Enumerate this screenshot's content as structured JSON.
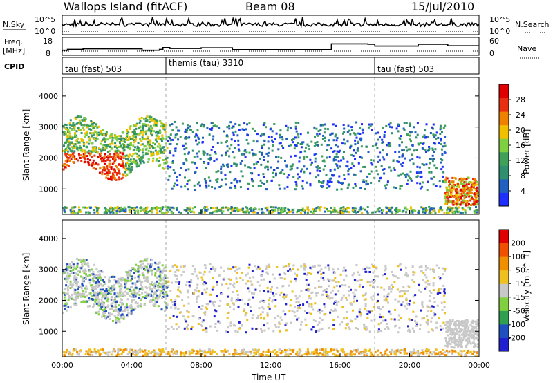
{
  "header": {
    "station": "Wallops Island (fitACF)",
    "beam": "Beam 08",
    "date": "15/Jul/2010"
  },
  "side_labels": {
    "nsky": "N.Sky",
    "freq_line1": "Freq.",
    "freq_line2": "[MHz]",
    "cpid": "CPID",
    "nsearch": "N.Search",
    "nave": "Nave"
  },
  "colors": {
    "power_scale": [
      "#1e2fff",
      "#2060c0",
      "#2f8f6f",
      "#3fa05a",
      "#7fd040",
      "#f0c000",
      "#f08000",
      "#e83010",
      "#e00000"
    ],
    "velocity_scale": [
      "#2020d0",
      "#2050c0",
      "#30a050",
      "#80d040",
      "#c8c8c8",
      "#f0c020",
      "#f09000",
      "#f05000",
      "#e00000"
    ]
  },
  "chart_data": [
    {
      "type": "line",
      "panel": "noise",
      "left_ticks": [
        "10^5",
        "10^0"
      ],
      "right_ticks": [
        "10^5",
        "10^0"
      ],
      "left_label": "N.Sky",
      "right_label": "N.Search"
    },
    {
      "type": "line",
      "panel": "frequency",
      "left_ticks": [
        "18",
        "8"
      ],
      "right_ticks": [
        "60",
        "0"
      ],
      "left_label": "Freq. [MHz]",
      "right_label": "Nave",
      "freq_steps": [
        {
          "t": 0.0,
          "mhz": 10.4
        },
        {
          "t": 0.3,
          "mhz": 11.0
        },
        {
          "t": 1.2,
          "mhz": 11.4
        },
        {
          "t": 4.6,
          "mhz": 10.4
        },
        {
          "t": 5.6,
          "mhz": 11.0
        },
        {
          "t": 5.8,
          "mhz": 12.2
        },
        {
          "t": 6.2,
          "mhz": 11.6
        },
        {
          "t": 8.0,
          "mhz": 12.0
        },
        {
          "t": 9.8,
          "mhz": 10.8
        },
        {
          "t": 15.5,
          "mhz": 14.6
        },
        {
          "t": 17.6,
          "mhz": 14.4
        },
        {
          "t": 18.0,
          "mhz": 13.2
        },
        {
          "t": 20.5,
          "mhz": 14.4
        },
        {
          "t": 22.2,
          "mhz": 13.4
        },
        {
          "t": 24.0,
          "mhz": 13.4
        }
      ]
    },
    {
      "type": "table",
      "panel": "cpid",
      "entries": [
        {
          "start": "00:00",
          "label": "tau (fast) 503"
        },
        {
          "start": "06:00",
          "label": "themis (tau) 3310"
        },
        {
          "start": "18:00",
          "label": "tau (fast) 503"
        }
      ]
    },
    {
      "type": "heatmap",
      "panel": "power",
      "ylabel": "Slant Range [km]",
      "xlim": [
        "00:00",
        "24:00"
      ],
      "ylim": [
        180,
        4600
      ],
      "y_ticks": [
        1000,
        2000,
        3000,
        4000
      ],
      "colorbar_label": "Power [dB]",
      "colorbar_ticks": [
        28,
        24,
        20,
        16,
        12,
        8,
        4
      ],
      "colorbar_range": [
        0,
        32
      ]
    },
    {
      "type": "heatmap",
      "panel": "velocity",
      "ylabel": "Slant Range [km]",
      "xlabel": "Time UT",
      "x_ticks": [
        "00:00",
        "04:00",
        "08:00",
        "12:00",
        "16:00",
        "20:00",
        "00:00"
      ],
      "xlim": [
        "00:00",
        "24:00"
      ],
      "ylim": [
        180,
        4600
      ],
      "y_ticks": [
        1000,
        2000,
        3000,
        4000
      ],
      "colorbar_label": "Velocity [m s^-1]",
      "colorbar_ticks": [
        200,
        100,
        50,
        15,
        -15,
        -50,
        -100,
        -200
      ]
    }
  ]
}
